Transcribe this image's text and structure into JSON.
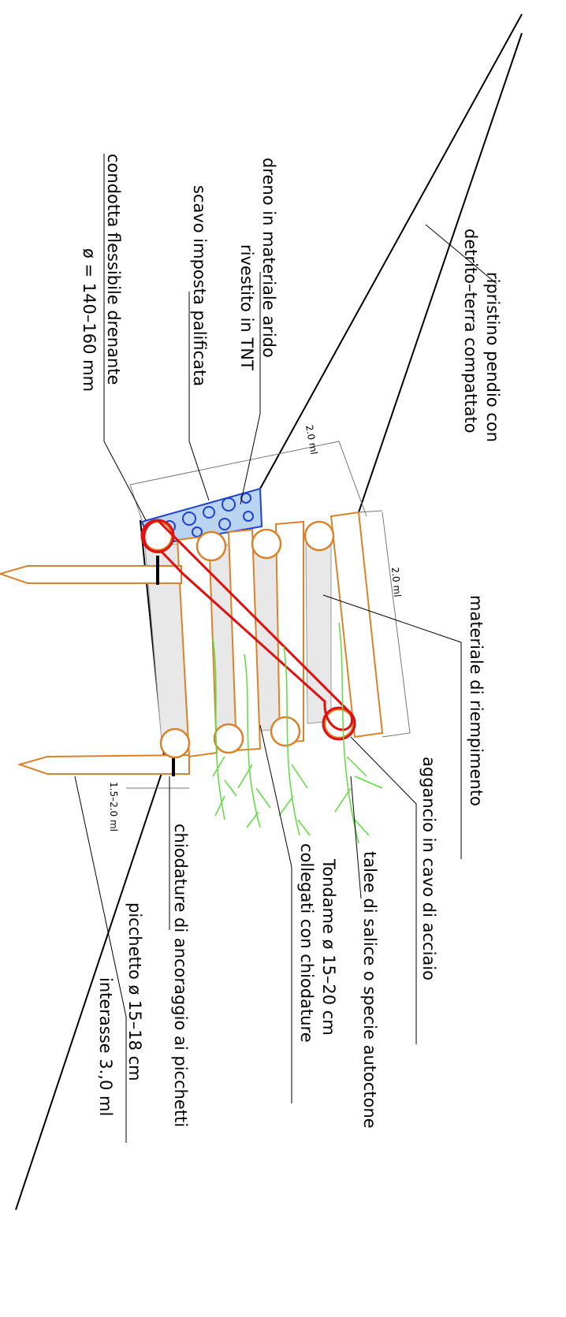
{
  "labels": {
    "ripristino": [
      "ripristino pendio con",
      "detrito–terra compattato"
    ],
    "dreno": [
      "dreno in materiale arido",
      "rivestito in TNT"
    ],
    "scavo": [
      "scavo imposta palificata"
    ],
    "condotta": [
      "condotta flessibile drenante",
      "ø = 140–160 mm"
    ],
    "materiale": [
      "materiale di riempimento"
    ],
    "aggancio": [
      "aggancio in cavo di acciaio"
    ],
    "talee": [
      "talee di salice o specie autoctone"
    ],
    "tondame": [
      "Tondame ø 15–20 cm",
      "collegati con chiodature"
    ],
    "chiodature": [
      "chiodature di ancoraggio ai picchetti"
    ],
    "picchetto": [
      "picchetto ø 15–18 cm",
      "interasse 3.,0 ml"
    ]
  },
  "dimensions": [
    "2.0 ml",
    "2.0 ml",
    "1.5–2.0 ml"
  ]
}
